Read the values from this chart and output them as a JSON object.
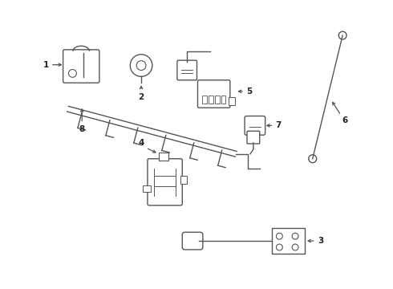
{
  "bg_color": "#ffffff",
  "line_color": "#555555",
  "label_color": "#222222",
  "lw": 1.0
}
